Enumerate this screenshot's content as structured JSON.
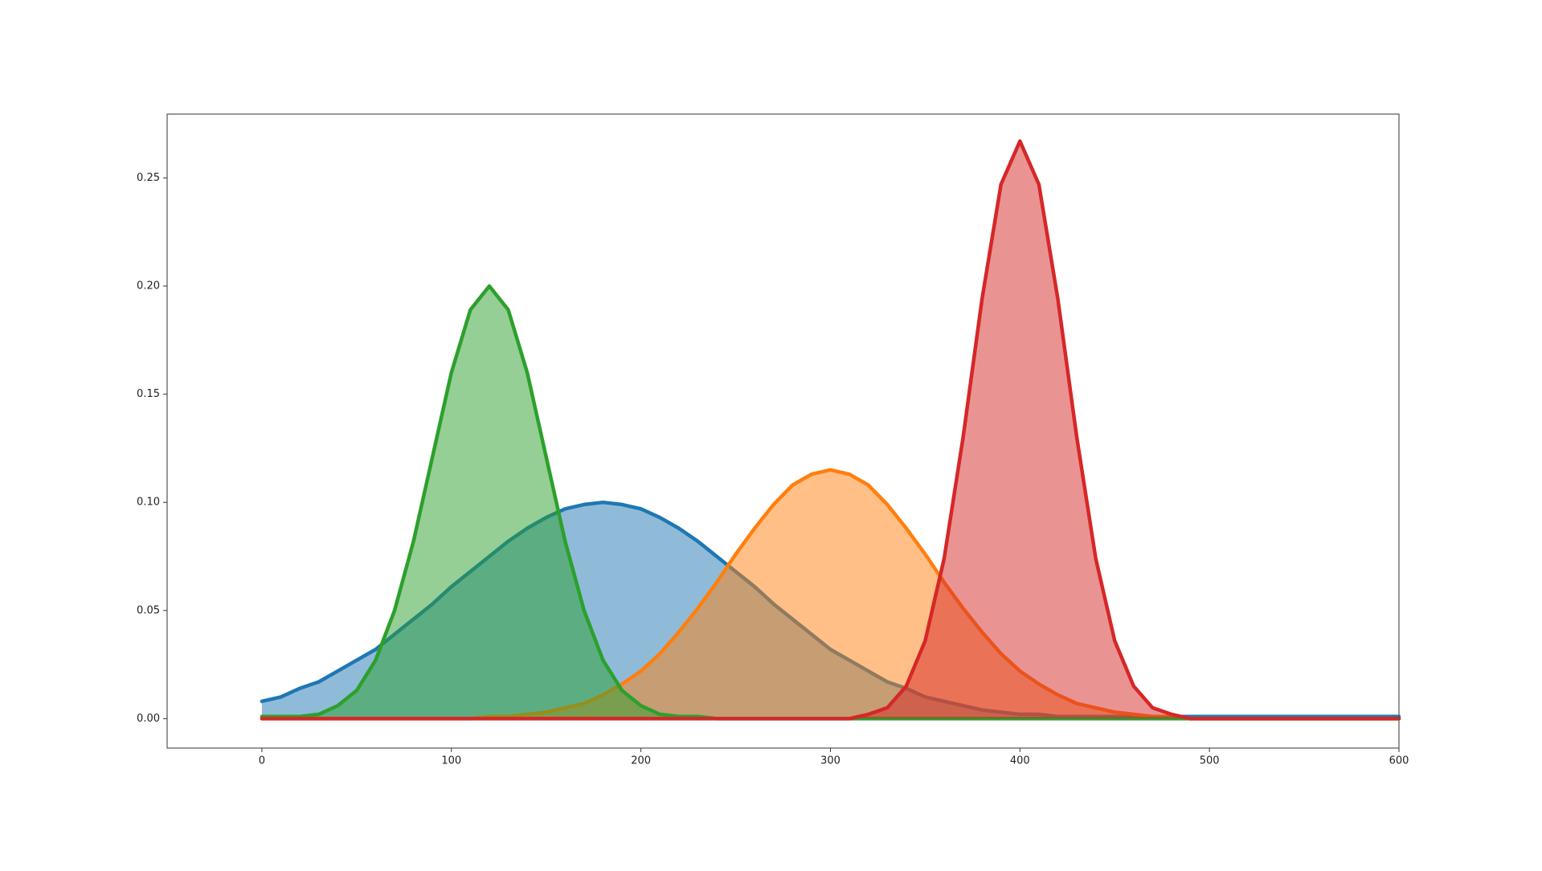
{
  "chart_data": {
    "type": "area",
    "x": [
      0,
      10,
      20,
      30,
      40,
      50,
      60,
      70,
      80,
      90,
      100,
      110,
      120,
      130,
      140,
      150,
      160,
      170,
      180,
      190,
      200,
      210,
      220,
      230,
      240,
      250,
      260,
      270,
      280,
      290,
      300,
      310,
      320,
      330,
      340,
      350,
      360,
      370,
      380,
      390,
      400,
      410,
      420,
      430,
      440,
      450,
      460,
      470,
      480,
      490,
      500,
      510,
      520,
      530,
      540,
      550,
      560,
      570,
      580,
      590,
      600
    ],
    "series": [
      {
        "color": "#1f77b4",
        "values": [
          0.008,
          0.01,
          0.014,
          0.017,
          0.022,
          0.027,
          0.032,
          0.039,
          0.046,
          0.053,
          0.061,
          0.068,
          0.075,
          0.082,
          0.088,
          0.093,
          0.097,
          0.099,
          0.1,
          0.099,
          0.097,
          0.093,
          0.088,
          0.082,
          0.075,
          0.068,
          0.061,
          0.053,
          0.046,
          0.039,
          0.032,
          0.027,
          0.022,
          0.017,
          0.014,
          0.01,
          0.008,
          0.006,
          0.004,
          0.003,
          0.002,
          0.002,
          0.001,
          0.001,
          0.001,
          0.001,
          0.001,
          0.001,
          0.001,
          0.001,
          0.001,
          0.001,
          0.001,
          0.001,
          0.001,
          0.001,
          0.001,
          0.001,
          0.001,
          0.001,
          0.001
        ]
      },
      {
        "color": "#ff7f0e",
        "values": [
          0,
          0,
          0,
          0,
          0,
          0,
          0,
          0,
          0,
          0,
          0,
          0,
          0.001,
          0.001,
          0.002,
          0.003,
          0.005,
          0.007,
          0.011,
          0.016,
          0.022,
          0.03,
          0.04,
          0.051,
          0.063,
          0.076,
          0.088,
          0.099,
          0.108,
          0.113,
          0.115,
          0.113,
          0.108,
          0.099,
          0.088,
          0.076,
          0.063,
          0.051,
          0.04,
          0.03,
          0.022,
          0.016,
          0.011,
          0.007,
          0.005,
          0.003,
          0.002,
          0.001,
          0.001,
          0,
          0,
          0,
          0,
          0,
          0,
          0,
          0,
          0,
          0,
          0,
          0
        ]
      },
      {
        "color": "#2ca02c",
        "values": [
          0.001,
          0.001,
          0.001,
          0.002,
          0.006,
          0.013,
          0.027,
          0.05,
          0.082,
          0.121,
          0.16,
          0.189,
          0.2,
          0.189,
          0.16,
          0.121,
          0.082,
          0.05,
          0.027,
          0.013,
          0.006,
          0.002,
          0.001,
          0.001,
          0,
          0,
          0,
          0,
          0,
          0,
          0,
          0,
          0,
          0,
          0,
          0,
          0,
          0,
          0,
          0,
          0,
          0,
          0,
          0,
          0,
          0,
          0,
          0,
          0,
          0,
          0,
          0,
          0,
          0,
          0,
          0,
          0,
          0,
          0,
          0,
          0
        ]
      },
      {
        "color": "#d62728",
        "values": [
          0,
          0,
          0,
          0,
          0,
          0,
          0,
          0,
          0,
          0,
          0,
          0,
          0,
          0,
          0,
          0,
          0,
          0,
          0,
          0,
          0,
          0,
          0,
          0,
          0,
          0,
          0,
          0,
          0,
          0,
          0,
          0,
          0.002,
          0.005,
          0.015,
          0.036,
          0.074,
          0.13,
          0.194,
          0.247,
          0.267,
          0.247,
          0.194,
          0.13,
          0.074,
          0.036,
          0.015,
          0.005,
          0.002,
          0,
          0,
          0,
          0,
          0,
          0,
          0,
          0,
          0,
          0,
          0,
          0
        ]
      }
    ],
    "xlim": [
      -50,
      600
    ],
    "xticks": [
      0,
      100,
      200,
      300,
      400,
      500,
      600
    ],
    "ylim": [
      -0.0136,
      0.2795
    ],
    "yticks": [
      {
        "value": 0,
        "label": "0.00"
      },
      {
        "value": 0.05,
        "label": "0.05"
      },
      {
        "value": 0.1,
        "label": "0.10"
      },
      {
        "value": 0.15,
        "label": "0.15"
      },
      {
        "value": 0.2,
        "label": "0.20"
      },
      {
        "value": 0.25,
        "label": "0.25"
      }
    ],
    "fill_opacity": 0.5
  }
}
